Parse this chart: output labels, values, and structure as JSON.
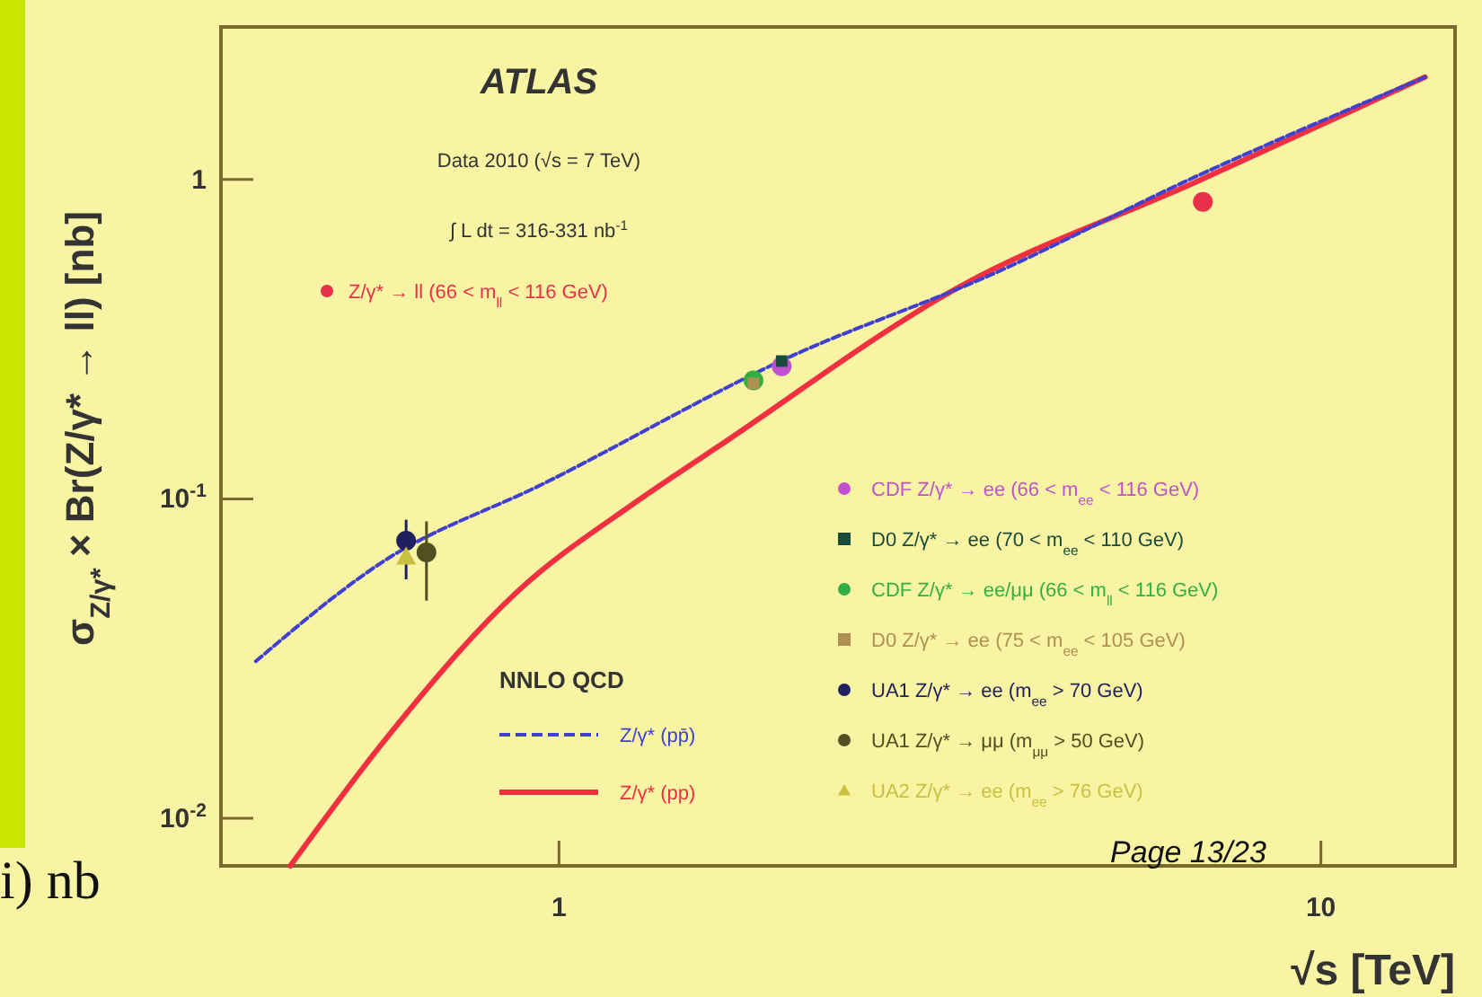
{
  "chart_data": {
    "type": "scatter",
    "xlabel": "√s [TeV]",
    "ylabel": "σ$_{Z/γ*}$ × Br(Z/γ* → ll) [nb]",
    "log": "xy",
    "xlim": [
      0.36,
      15
    ],
    "ylim": [
      0.0071,
      3
    ],
    "xticks": [
      1,
      10
    ],
    "yticks": [
      1,
      {
        "value": 0.1,
        "label": "10$^{-1}$"
      },
      {
        "value": 0.01,
        "label": "10$^{-2}$"
      }
    ],
    "grid": false,
    "legend": "bottom left",
    "legend_title": "NNLO QCD",
    "annotations": [
      "ATLAS",
      "Data 2010 (√s = 7 TeV)",
      "∫ L dt = 316-331 nb$^{-1}$",
      "i) nb",
      "Page 13/23"
    ],
    "series": [
      {
        "type": "scatter",
        "name": "Z/γ* → ll (66 < m$_{ll}$ < 116 GeV)",
        "color": "#e8304a",
        "marker": "circle",
        "x": [
          7
        ],
        "values": [
          0.85
        ],
        "errors": [
          0.05
        ]
      },
      {
        "type": "scatter",
        "name": "CDF Z/γ* → ee (66 < m$_{ee}$ < 116 GeV)",
        "color": "#c050d0",
        "marker": "circle",
        "x": [
          1.96
        ],
        "values": [
          0.26
        ]
      },
      {
        "type": "scatter",
        "name": "D0 Z/γ* → ee   (70 < m$_{ee}$ < 110 GeV)",
        "color": "#1a4a3a",
        "marker": "square",
        "x": [
          1.96
        ],
        "values": [
          0.27
        ]
      },
      {
        "type": "scatter",
        "name": "CDF Z/γ* → ee/μμ (66 < m$_{ll}$ < 116 GeV)",
        "color": "#30b040",
        "marker": "circle",
        "x": [
          1.8
        ],
        "values": [
          0.235
        ]
      },
      {
        "type": "scatter",
        "name": "D0 Z/γ* → ee   (75 < m$_{ee}$ < 105 GeV)",
        "color": "#b09050",
        "marker": "square",
        "x": [
          1.8
        ],
        "values": [
          0.23
        ]
      },
      {
        "type": "scatter",
        "name": "UA1 Z/γ* → ee   (m$_{ee}$ > 70 GeV)",
        "color": "#202060",
        "marker": "circle",
        "x": [
          0.63
        ],
        "values": [
          0.074
        ],
        "errors": [
          [
            0.056,
            0.086
          ]
        ]
      },
      {
        "type": "scatter",
        "name": "UA1 Z/γ* → μμ   (m$_{μμ}$ > 50 GeV)",
        "color": "#505020",
        "marker": "circle",
        "x": [
          0.67
        ],
        "values": [
          0.068
        ],
        "errors": [
          [
            0.048,
            0.085
          ]
        ]
      },
      {
        "type": "scatter",
        "name": "UA2 Z/γ* → ee   (m$_{ee}$ > 76 GeV)",
        "color": "#c8c040",
        "marker": "triangle",
        "x": [
          0.63
        ],
        "values": [
          0.066
        ]
      },
      {
        "type": "line",
        "name": "Z/γ* (pp̄)",
        "color": "#4040d0",
        "line_style": "dashed",
        "x": [
          0.4,
          0.59,
          0.95,
          2.02,
          3.67,
          6.85,
          13.7
        ],
        "values": [
          0.031,
          0.064,
          0.111,
          0.28,
          0.5,
          1.02,
          2.09
        ]
      },
      {
        "type": "line",
        "name": "Z/γ* (pp)",
        "color": "#f03040",
        "line_style": "solid",
        "x": [
          0.444,
          0.59,
          0.88,
          1.26,
          1.63,
          3.35,
          6.85,
          13.7
        ],
        "values": [
          0.0071,
          0.0175,
          0.051,
          0.0975,
          0.1475,
          0.46,
          0.98,
          2.09
        ]
      }
    ]
  }
}
